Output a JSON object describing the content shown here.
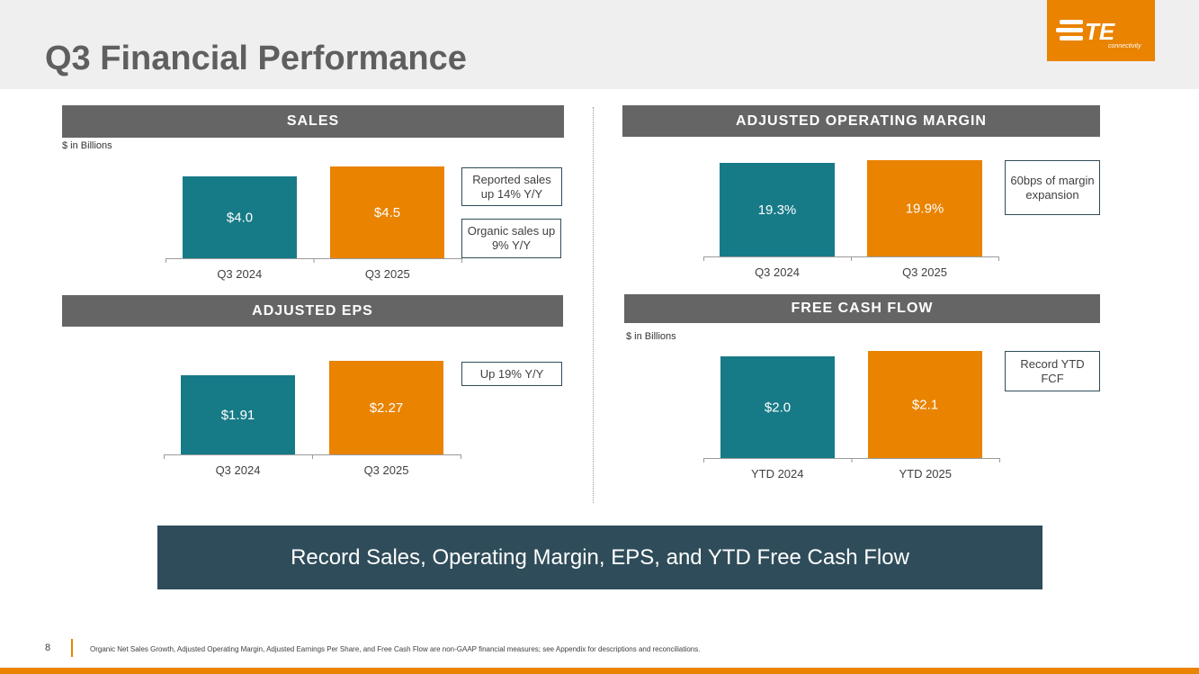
{
  "slide": {
    "title": "Q3 Financial Performance",
    "summary": "Record Sales, Operating Margin, EPS, and YTD Free Cash Flow",
    "page_number": "8",
    "footnote": "Organic Net Sales Growth, Adjusted Operating Margin, Adjusted Earnings Per Share, and Free Cash Flow are non-GAAP financial measures; see Appendix for descriptions and reconciliations."
  },
  "logo": {
    "text": "TE",
    "subtext": "connectivity"
  },
  "colors": {
    "teal": "#177b87",
    "orange": "#e98300",
    "banner": "#656565",
    "navy": "#2f4c5a"
  },
  "sections": [
    {
      "id": "sales",
      "title": "SALES",
      "unit": "$ in Billions",
      "callouts": [
        "Reported sales up 14% Y/Y",
        "Organic sales up 9% Y/Y"
      ]
    },
    {
      "id": "margin",
      "title": "ADJUSTED OPERATING MARGIN",
      "unit": "",
      "callouts": [
        "60bps of margin expansion"
      ]
    },
    {
      "id": "eps",
      "title": "ADJUSTED EPS",
      "unit": "",
      "callouts": [
        "Up 19% Y/Y"
      ]
    },
    {
      "id": "fcf",
      "title": "FREE CASH FLOW",
      "unit": "$ in Billions",
      "callouts": [
        "Record YTD FCF"
      ]
    }
  ],
  "chart_data": [
    {
      "id": "sales",
      "type": "bar",
      "title": "SALES",
      "ylabel": "$ in Billions",
      "categories": [
        "Q3 2024",
        "Q3 2025"
      ],
      "values": [
        4.0,
        4.5
      ],
      "labels": [
        "$4.0",
        "$4.5"
      ],
      "colors": [
        "#177b87",
        "#e98300"
      ],
      "ylim": [
        0,
        4.5
      ]
    },
    {
      "id": "margin",
      "type": "bar",
      "title": "ADJUSTED OPERATING MARGIN",
      "categories": [
        "Q3 2024",
        "Q3 2025"
      ],
      "values": [
        19.3,
        19.9
      ],
      "labels": [
        "19.3%",
        "19.9%"
      ],
      "colors": [
        "#177b87",
        "#e98300"
      ],
      "ylim": [
        0,
        19.9
      ]
    },
    {
      "id": "eps",
      "type": "bar",
      "title": "ADJUSTED EPS",
      "categories": [
        "Q3 2024",
        "Q3 2025"
      ],
      "values": [
        1.91,
        2.27
      ],
      "labels": [
        "$1.91",
        "$2.27"
      ],
      "colors": [
        "#177b87",
        "#e98300"
      ],
      "ylim": [
        0,
        2.27
      ]
    },
    {
      "id": "fcf",
      "type": "bar",
      "title": "FREE CASH FLOW",
      "ylabel": "$ in Billions",
      "categories": [
        "YTD 2024",
        "YTD 2025"
      ],
      "values": [
        2.0,
        2.1
      ],
      "labels": [
        "$2.0",
        "$2.1"
      ],
      "colors": [
        "#177b87",
        "#e98300"
      ],
      "ylim": [
        0,
        2.1
      ]
    }
  ]
}
